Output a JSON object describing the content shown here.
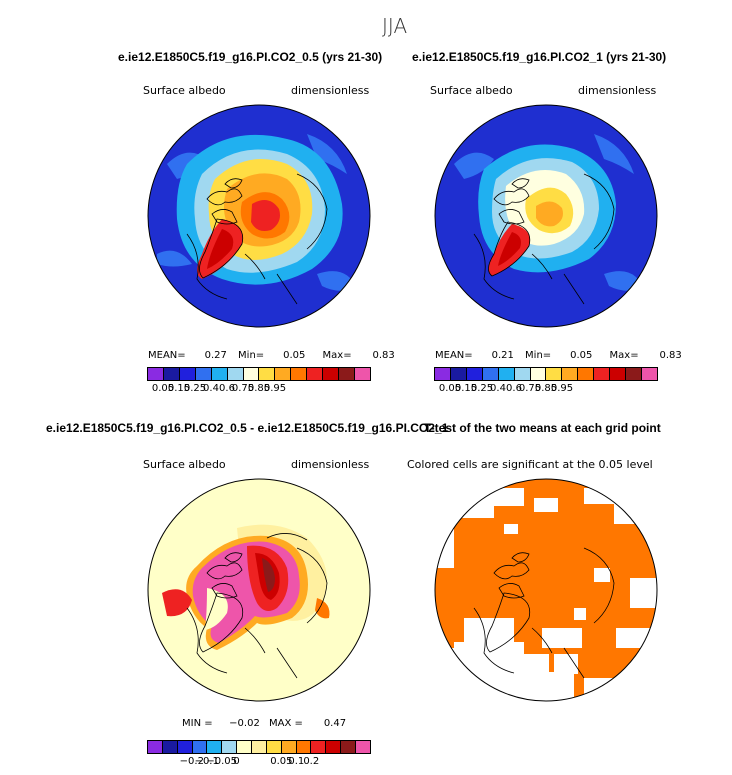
{
  "season": "JJA",
  "panels": [
    {
      "title": "e.ie12.E1850C5.f19_g16.PI.CO2_0.5 (yrs 21-30)",
      "field_label": "Surface albedo",
      "units_label": "dimensionless",
      "stats": {
        "mean_label": "MEAN=",
        "mean": "0.27",
        "min_label": "Min=",
        "min": "0.05",
        "max_label": "Max=",
        "max": "0.83"
      }
    },
    {
      "title": "e.ie12.E1850C5.f19_g16.PI.CO2_1 (yrs 21-30)",
      "field_label": "Surface albedo",
      "units_label": "dimensionless",
      "stats": {
        "mean_label": "MEAN=",
        "mean": "0.21",
        "min_label": "Min=",
        "min": "0.05",
        "max_label": "Max=",
        "max": "0.83"
      }
    },
    {
      "title": "e.ie12.E1850C5.f19_g16.PI.CO2_0.5 - e.ie12.E1850C5.f19_g16.PI.CO2_1",
      "field_label": "Surface albedo",
      "units_label": "dimensionless",
      "stats": {
        "min_label": "MIN =",
        "min": "−0.02",
        "max_label": "MAX =",
        "max": "0.47"
      }
    },
    {
      "title": "T-test of the two means at each grid point",
      "note": "Colored cells are significant at the 0.05 level"
    }
  ],
  "colorbar_albedo": {
    "colors": [
      "#8a2be2",
      "#1a1aa0",
      "#2020dd",
      "#3070f0",
      "#20b0f0",
      "#a0d8f0",
      "#ffffe0",
      "#ffdd44",
      "#ffaa22",
      "#ff7700",
      "#ee2222",
      "#cc0000",
      "#8b1a1a",
      "#ee55aa"
    ],
    "ticks": [
      "0.05",
      "0.15",
      "0.25",
      "0.4",
      "0.6",
      "0.75",
      "0.85",
      "0.95"
    ]
  },
  "colorbar_diff": {
    "colors": [
      "#8a2be2",
      "#1a1aa0",
      "#2020dd",
      "#3070f0",
      "#20b0f0",
      "#a0d8f0",
      "#ffffc8",
      "#fff0a0",
      "#ffdd44",
      "#ffaa22",
      "#ff7700",
      "#ee2222",
      "#cc0000",
      "#8b1a1a",
      "#ee55aa"
    ],
    "ticks": [
      "−0.2",
      "−0.1",
      "−0.05",
      "0",
      "0.05",
      "0.1",
      "0.2"
    ]
  },
  "map_colors": {
    "ocean": "#1f2fd0",
    "ocean_light": "#3070f0",
    "ice_edge": "#20b0f0",
    "pale": "#a0d8f0",
    "yellow": "#ffdd44",
    "orange": "#ffaa22",
    "dark_orange": "#ff7700",
    "red": "#ee2222",
    "diff_bg": "#ffffc8",
    "diff_pink": "#ee55aa",
    "diff_red": "#cc0000",
    "diff_dark": "#8b1a1a",
    "signif": "#ff7700",
    "coast": "#000000"
  }
}
